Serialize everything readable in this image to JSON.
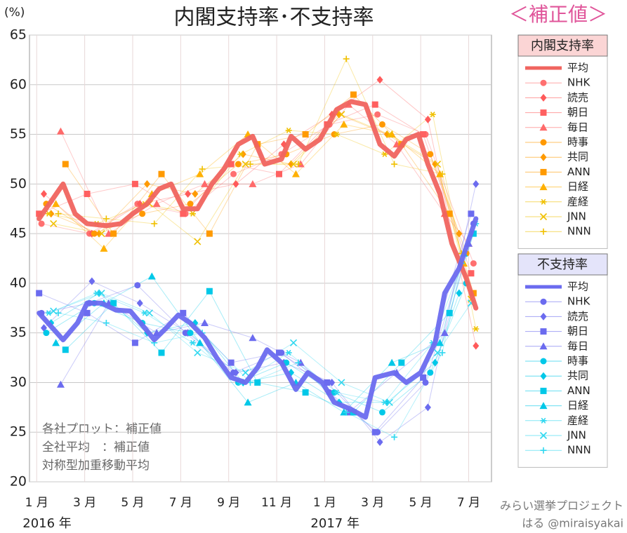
{
  "chart_data": {
    "type": "line",
    "title": "内閣支持率･不支持率",
    "subtitle": "＜補正値＞",
    "y_label": "(%)",
    "xlim": [
      -0.3,
      18.95
    ],
    "xticks": [
      {
        "value": 0,
        "label": "1 月"
      },
      {
        "value": 2,
        "label": "3 月"
      },
      {
        "value": 4,
        "label": "5 月"
      },
      {
        "value": 6,
        "label": "7 月"
      },
      {
        "value": 8,
        "label": "9 月"
      },
      {
        "value": 10,
        "label": "11 月"
      },
      {
        "value": 12,
        "label": "1 月"
      },
      {
        "value": 14,
        "label": "3 月"
      },
      {
        "value": 16,
        "label": "5 月"
      },
      {
        "value": 18,
        "label": "7 月"
      }
    ],
    "x_groups": [
      {
        "value": 0,
        "label": "2016 年"
      },
      {
        "value": 12,
        "label": "2017 年"
      }
    ],
    "ylim": [
      20,
      65
    ],
    "yticks": [
      20,
      25,
      30,
      35,
      40,
      45,
      50,
      55,
      60,
      65
    ],
    "grid": true,
    "groups": [
      {
        "name": "内閣支持率",
        "header_color": "#fbd5d5",
        "average": {
          "name": "平均",
          "color": "#f0645f",
          "x": [
            0.1,
            1.1,
            1.6,
            2.1,
            2.9,
            3.5,
            4,
            4.6,
            5.1,
            5.6,
            6.1,
            6.7,
            7.3,
            7.8,
            8.4,
            9,
            9.5,
            10.2,
            10.6,
            11.2,
            11.8,
            12.5,
            13.1,
            13.7,
            14.3,
            14.9,
            15.4,
            15.9,
            16.3,
            16.8,
            17.3,
            17.9,
            18.3
          ],
          "values": [
            46.5,
            50,
            47,
            46,
            45.8,
            46,
            47,
            48,
            49.5,
            50,
            47.5,
            47.5,
            50,
            51.5,
            54,
            54.8,
            52,
            52.5,
            54.8,
            53.5,
            54.5,
            57.5,
            58.3,
            58,
            54,
            52.8,
            54.5,
            55,
            52,
            49,
            44,
            40.5,
            37.5
          ]
        },
        "series": [
          {
            "name": "NHK",
            "color": "#ff7070",
            "marker": "circle",
            "x": [
              0.2,
              2.2,
              4.2,
              6.2,
              8.2,
              10.2,
              12.2,
              14.2,
              16.2,
              18.2
            ],
            "values": [
              46,
              45,
              48,
              47,
              51,
              53,
              56,
              57,
              55,
              42
            ]
          },
          {
            "name": "読売",
            "color": "#ff5a5a",
            "marker": "diamond",
            "x": [
              0.3,
              2.3,
              4.3,
              6.3,
              8.3,
              10.3,
              12.3,
              14.3,
              16.3,
              18.3
            ],
            "values": [
              49,
              45,
              48,
              49,
              50,
              54,
              57,
              60.5,
              56.5,
              33.7
            ]
          },
          {
            "name": "朝日",
            "color": "#ff6060",
            "marker": "square",
            "x": [
              0.1,
              2.1,
              4.1,
              6.1,
              8.1,
              10.1,
              12.1,
              14.1,
              16.1,
              18.1
            ],
            "values": [
              47,
              49,
              50,
              47,
              52,
              51,
              56,
              58,
              55,
              41
            ]
          },
          {
            "name": "毎日",
            "color": "#ff6a6a",
            "marker": "triangle",
            "x": [
              1.0,
              3.0,
              5.0,
              7.0,
              9.0,
              11.0,
              13.0,
              15.0,
              17.0,
              18.0
            ],
            "values": [
              55.3,
              45,
              48,
              50,
              50,
              52,
              58,
              54,
              47,
              44
            ]
          },
          {
            "name": "時事",
            "color": "#ff9900",
            "marker": "circle",
            "x": [
              0.4,
              2.4,
              4.4,
              6.4,
              8.4,
              10.4,
              12.4,
              14.4,
              16.4,
              17.9
            ],
            "values": [
              48,
              45,
              47,
              48,
              52,
              53,
              55,
              56,
              53,
              43
            ]
          },
          {
            "name": "共同",
            "color": "#ff9a00",
            "marker": "diamond",
            "x": [
              0.6,
              2.6,
              4.6,
              6.6,
              8.6,
              10.6,
              12.6,
              14.6,
              16.6,
              17.6
            ],
            "values": [
              47,
              45,
              50,
              49,
              53,
              52,
              57,
              55,
              52,
              45
            ]
          },
          {
            "name": "ANN",
            "color": "#ff9a00",
            "marker": "square",
            "x": [
              1.2,
              3.2,
              5.2,
              7.2,
              9.2,
              11.2,
              13.2,
              15.2,
              17.2,
              18.2
            ],
            "values": [
              52,
              45,
              51,
              45,
              54,
              55,
              59,
              54,
              47,
              39
            ]
          },
          {
            "name": "日経",
            "color": "#ffb000",
            "marker": "triangle",
            "x": [
              0.8,
              2.8,
              4.8,
              6.8,
              8.8,
              10.8,
              12.8,
              14.8,
              16.8,
              17.8
            ],
            "values": [
              48,
              43.5,
              49,
              51,
              55,
              51,
              56,
              55,
              51,
              42
            ]
          },
          {
            "name": "産経",
            "color": "#f0c000",
            "marker": "asterisk",
            "x": [
              0.5,
              2.5,
              4.5,
              6.5,
              8.5,
              10.5,
              12.5,
              14.5,
              16.5,
              18.3
            ],
            "values": [
              47,
              46,
              48,
              47,
              53,
              55.4,
              55,
              53,
              57,
              35.4
            ]
          },
          {
            "name": "JNN",
            "color": "#f0c000",
            "marker": "x",
            "x": [
              0.7,
              2.7,
              4.7,
              6.7,
              8.7,
              10.7,
              12.7,
              14.7,
              16.7,
              18.1
            ],
            "values": [
              46,
              45,
              48,
              44.2,
              52,
              52,
              57,
              55,
              52,
              38.4
            ]
          },
          {
            "name": "NNN",
            "color": "#f0c000",
            "marker": "plus",
            "x": [
              0.9,
              2.9,
              4.9,
              6.9,
              8.9,
              10.9,
              12.9,
              14.9,
              16.9,
              17.7
            ],
            "values": [
              47,
              46.5,
              46,
              51.5,
              52,
              52,
              62.6,
              52,
              51,
              43
            ]
          }
        ]
      },
      {
        "name": "不支持率",
        "header_color": "#e4e4fa",
        "average": {
          "name": "平均",
          "color": "#6b6bef",
          "x": [
            0.1,
            1.1,
            1.7,
            2.1,
            2.7,
            3.3,
            3.9,
            4.5,
            4.9,
            5.4,
            5.9,
            6.4,
            7,
            7.5,
            8.1,
            8.7,
            9.2,
            9.6,
            10.2,
            10.8,
            11.3,
            11.9,
            12.4,
            13.1,
            13.7,
            14.1,
            14.9,
            15.4,
            16,
            16.6,
            17,
            17.6,
            18.3
          ],
          "values": [
            37,
            34.3,
            36,
            38,
            38,
            37.3,
            37.2,
            35.5,
            34.3,
            35.5,
            36.8,
            36,
            34.5,
            32.5,
            30.5,
            30,
            31.5,
            33.3,
            32,
            29.3,
            31,
            30,
            28,
            27.3,
            26.5,
            30.5,
            31,
            30,
            31,
            34,
            39,
            41.5,
            46.5
          ]
        },
        "series": [
          {
            "name": "NHK",
            "color": "#6b6bef",
            "marker": "circle",
            "x": [
              0.2,
              2.2,
              4.2,
              6.2,
              8.2,
              10.2,
              12.2,
              14.2,
              16.2,
              18.2
            ],
            "values": [
              37,
              38,
              39.8,
              35,
              31,
              33,
              29,
              25,
              30,
              46
            ]
          },
          {
            "name": "読売",
            "color": "#6b6bef",
            "marker": "diamond",
            "x": [
              0.3,
              2.3,
              4.3,
              6.3,
              8.3,
              10.3,
              12.3,
              14.3,
              16.3,
              18.3
            ],
            "values": [
              35.5,
              40.2,
              38,
              35,
              31,
              32,
              30,
              24,
              27.5,
              50
            ]
          },
          {
            "name": "朝日",
            "color": "#6b6bef",
            "marker": "square",
            "x": [
              0.1,
              2.1,
              4.1,
              6.1,
              8.1,
              10.1,
              12.1,
              14.1,
              16.1,
              18.1
            ],
            "values": [
              39,
              37,
              34,
              37,
              32,
              33,
              30,
              25,
              30.5,
              47
            ]
          },
          {
            "name": "毎日",
            "color": "#6b6bef",
            "marker": "triangle",
            "x": [
              1.0,
              3.0,
              5.0,
              7.0,
              9.0,
              11.0,
              13.0,
              15.0,
              17.0,
              18.0
            ],
            "values": [
              29.8,
              38,
              35,
              36,
              34.5,
              32,
              27,
              31,
              35,
              44
            ]
          },
          {
            "name": "時事",
            "color": "#00c8e8",
            "marker": "circle",
            "x": [
              0.4,
              2.4,
              4.4,
              6.4,
              8.4,
              10.4,
              12.4,
              14.4,
              16.4,
              17.9
            ],
            "values": [
              35,
              38,
              36,
              35,
              30,
              32,
              29,
              27,
              31,
              40
            ]
          },
          {
            "name": "共同",
            "color": "#00c8e8",
            "marker": "diamond",
            "x": [
              0.6,
              2.6,
              4.6,
              6.6,
              8.6,
              10.6,
              12.6,
              14.6,
              16.6,
              17.6
            ],
            "values": [
              36,
              39,
              35,
              36,
              30,
              31,
              28,
              28,
              32,
              39
            ]
          },
          {
            "name": "ANN",
            "color": "#00c8e8",
            "marker": "square",
            "x": [
              1.2,
              3.2,
              5.2,
              7.2,
              9.2,
              11.2,
              13.2,
              15.2,
              17.2,
              18.2
            ],
            "values": [
              33.3,
              38,
              33,
              39.2,
              30,
              29,
              27,
              32,
              37,
              45
            ]
          },
          {
            "name": "日経",
            "color": "#00c8e8",
            "marker": "triangle",
            "x": [
              0.8,
              2.8,
              4.8,
              6.8,
              8.8,
              10.8,
              12.8,
              14.8,
              16.8,
              17.8
            ],
            "values": [
              34,
              38,
              40.7,
              34,
              28,
              30,
              27,
              32,
              34,
              43
            ]
          },
          {
            "name": "産経",
            "color": "#30d8f0",
            "marker": "asterisk",
            "x": [
              0.5,
              2.5,
              4.5,
              6.5,
              8.5,
              10.5,
              12.5,
              14.5,
              16.5,
              18.3
            ],
            "values": [
              37,
              39,
              37,
              34,
              30,
              33,
              29,
              28,
              34,
              46
            ]
          },
          {
            "name": "JNN",
            "color": "#30d8f0",
            "marker": "x",
            "x": [
              0.7,
              2.7,
              4.7,
              6.7,
              8.7,
              10.7,
              12.7,
              14.7,
              16.7,
              18.1
            ],
            "values": [
              37.2,
              39,
              37,
              33,
              31,
              34,
              30,
              28,
              33,
              38
            ]
          },
          {
            "name": "NNN",
            "color": "#30d8f0",
            "marker": "plus",
            "x": [
              0.9,
              2.9,
              4.9,
              6.9,
              8.9,
              10.9,
              12.9,
              14.9,
              16.9,
              17.7
            ],
            "values": [
              37,
              36,
              34,
              35,
              30,
              32,
              27,
              24.5,
              33,
              42
            ]
          }
        ]
      }
    ],
    "annotations": [
      "各社プロット：補正値",
      "全社平均　：補正値",
      "対称型加重移動平均"
    ],
    "credits": [
      "みらい選挙プロジェクト",
      "はる @miraisyakai"
    ]
  }
}
